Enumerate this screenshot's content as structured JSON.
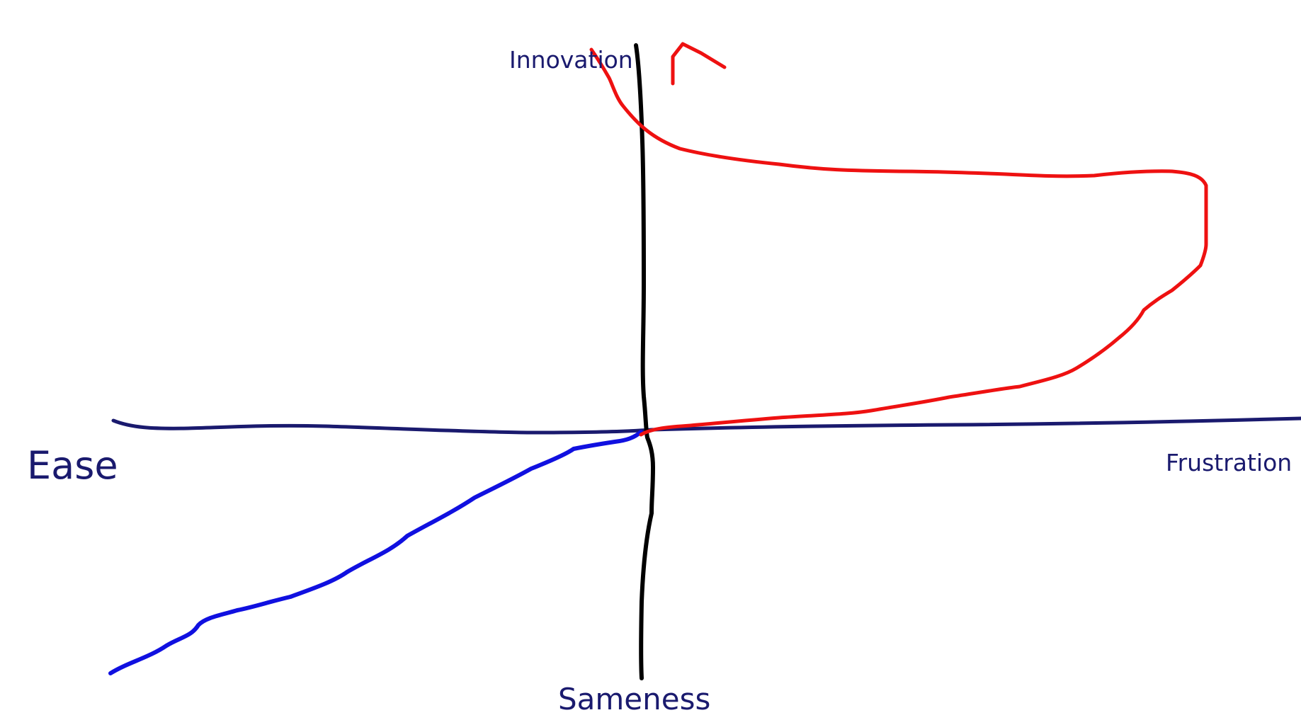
{
  "colors": {
    "background": "#ffffff",
    "horizontal_axis": "#1a1a6e",
    "vertical_axis": "#000000",
    "label_text": "#1a1a6e",
    "ease_curve": "#1010e0",
    "frustration_curve": "#ee1111"
  },
  "labels": {
    "top": "Innovation",
    "bottom": "Sameness",
    "left": "Ease",
    "right": "Frustration"
  },
  "diagram": {
    "type": "hand-drawn quadrant sketch",
    "curves": [
      {
        "name": "ease-sameness-curve",
        "description_color": "blue"
      },
      {
        "name": "frustration-innovation-curve",
        "description_color": "red",
        "ends_with": "arrow"
      }
    ]
  }
}
